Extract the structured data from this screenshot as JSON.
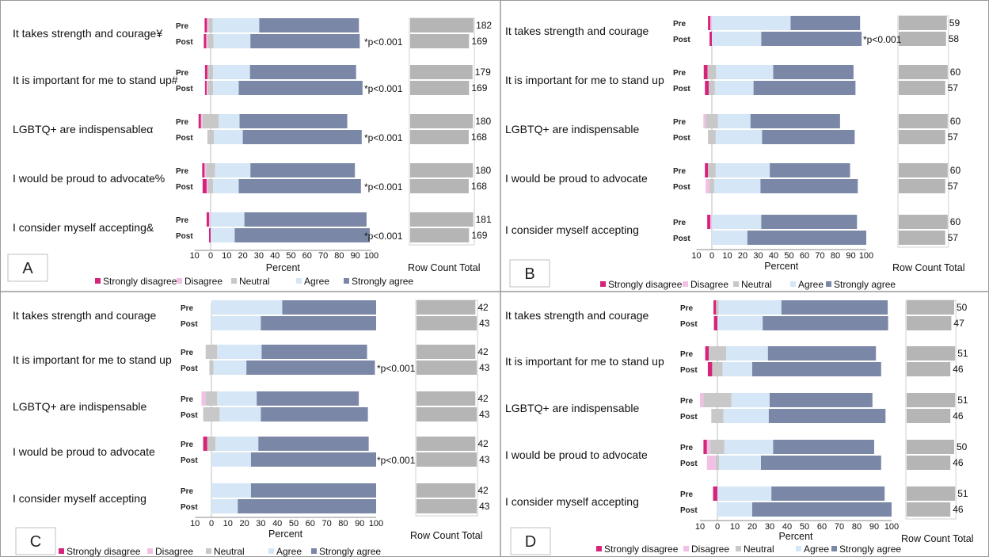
{
  "legend": [
    "Strongly disagree",
    "Disagree",
    "Neutral",
    "Agree",
    "Strongly agree"
  ],
  "colors": {
    "strongly_disagree": "#d6247a",
    "disagree": "#f2c0e4",
    "neutral": "#c8c8c8",
    "agree": "#d5e6f6",
    "strongly_agree": "#7b87a6",
    "count_bar": "#b5b5b5",
    "divider": "#9a9a9a"
  },
  "chart_data": [
    {
      "type": "bar",
      "panel": "A",
      "xlabel": "Percent",
      "count_label": "Row Count Total",
      "x_ticks": [
        "10",
        "0",
        "10",
        "20",
        "30",
        "40",
        "50",
        "60",
        "70",
        "80",
        "90",
        "100"
      ],
      "xlim": [
        -10,
        100
      ],
      "questions": [
        {
          "label": "It takes strength and courage¥",
          "pre": {
            "sd": 1.5,
            "d": 1.0,
            "n": 2.5,
            "a": 29,
            "sa": 62,
            "count": "182"
          },
          "post": {
            "sd": 1.5,
            "d": 1.0,
            "n": 3.5,
            "a": 23,
            "sa": 68,
            "count": "169"
          },
          "sig": "*p<0.001"
        },
        {
          "label": "It is important for me to stand up#",
          "pre": {
            "sd": 1.5,
            "d": 0.5,
            "n": 3,
            "a": 23,
            "sa": 66,
            "count": "179"
          },
          "post": {
            "sd": 1.0,
            "d": 1.0,
            "n": 3,
            "a": 16,
            "sa": 77,
            "count": "169"
          },
          "sig": "*p<0.001"
        },
        {
          "label": "LGBTQ+ are indispensableα",
          "pre": {
            "sd": 1.5,
            "d": 1.0,
            "n": 10,
            "a": 13,
            "sa": 67,
            "count": "180"
          },
          "post": {
            "sd": 0,
            "d": 0,
            "n": 4,
            "a": 18,
            "sa": 74,
            "count": "168"
          },
          "sig": "*p<0.001"
        },
        {
          "label": "I would be proud to advocate%",
          "pre": {
            "sd": 1.5,
            "d": 1.0,
            "n": 5.5,
            "a": 22,
            "sa": 65,
            "count": "180"
          },
          "post": {
            "sd": 2.5,
            "d": 1.0,
            "n": 3,
            "a": 16,
            "sa": 76,
            "count": "168"
          },
          "sig": "*p<0.001"
        },
        {
          "label": "I consider myself  accepting&",
          "pre": {
            "sd": 1.5,
            "d": 1.0,
            "n": 0,
            "a": 21,
            "sa": 76,
            "count": "181"
          },
          "post": {
            "sd": 1.0,
            "d": 0,
            "n": 0,
            "a": 15,
            "sa": 84,
            "count": "169"
          },
          "sig": "*p<0.001"
        }
      ]
    },
    {
      "type": "bar",
      "panel": "B",
      "xlabel": "Percent",
      "count_label": "Row Count Total",
      "x_ticks": [
        "10",
        "0",
        "10",
        "20",
        "30",
        "40",
        "50",
        "60",
        "70",
        "80",
        "90",
        "100"
      ],
      "xlim": [
        -10,
        100
      ],
      "questions": [
        {
          "label": "It takes strength and courage",
          "pre": {
            "sd": 1.5,
            "d": 1.0,
            "n": 0,
            "a": 51,
            "sa": 45,
            "count": "59"
          },
          "post": {
            "sd": 1.5,
            "d": 0,
            "n": 0,
            "a": 32,
            "sa": 65,
            "count": "58"
          },
          "sig": "*p<0.001"
        },
        {
          "label": "It is important for me to stand up",
          "pre": {
            "sd": 2.5,
            "d": 0,
            "n": 5.5,
            "a": 37,
            "sa": 52,
            "count": "60"
          },
          "post": {
            "sd": 2.5,
            "d": 0,
            "n": 4,
            "a": 25,
            "sa": 66,
            "count": "57"
          },
          "sig": ""
        },
        {
          "label": "LGBTQ+ are indispensable",
          "pre": {
            "sd": 0,
            "d": 1.5,
            "n": 8,
            "a": 21,
            "sa": 58,
            "count": "60"
          },
          "post": {
            "sd": 0,
            "d": 0,
            "n": 5,
            "a": 30,
            "sa": 60,
            "count": "57"
          },
          "sig": ""
        },
        {
          "label": "I would be proud to advocate",
          "pre": {
            "sd": 2.0,
            "d": 0,
            "n": 5,
            "a": 35,
            "sa": 52,
            "count": "60"
          },
          "post": {
            "sd": 0,
            "d": 2.5,
            "n": 3,
            "a": 30,
            "sa": 63,
            "count": "57"
          },
          "sig": ""
        },
        {
          "label": "I consider myself accepting",
          "pre": {
            "sd": 2.0,
            "d": 1.0,
            "n": 0,
            "a": 32,
            "sa": 62,
            "count": "60"
          },
          "post": {
            "sd": 0,
            "d": 0,
            "n": 0,
            "a": 23,
            "sa": 77,
            "count": "57"
          },
          "sig": ""
        }
      ]
    },
    {
      "type": "bar",
      "panel": "C",
      "xlabel": "Percent",
      "count_label": "Row Count Total",
      "x_ticks": [
        "10",
        "0",
        "10",
        "20",
        "30",
        "40",
        "50",
        "60",
        "70",
        "80",
        "90",
        "100"
      ],
      "xlim": [
        -10,
        100
      ],
      "questions": [
        {
          "label": "It takes strength and courage",
          "pre": {
            "sd": 0,
            "d": 0,
            "n": 0,
            "a": 43,
            "sa": 57,
            "count": "42"
          },
          "post": {
            "sd": 0,
            "d": 0,
            "n": 0,
            "a": 30,
            "sa": 70,
            "count": "43"
          },
          "sig": ""
        },
        {
          "label": "It is important for me to stand up",
          "pre": {
            "sd": 0,
            "d": 0,
            "n": 7,
            "a": 27,
            "sa": 64,
            "count": "42"
          },
          "post": {
            "sd": 0,
            "d": 0,
            "n": 2.5,
            "a": 20,
            "sa": 78,
            "count": "43"
          },
          "sig": "*p<0.001"
        },
        {
          "label": "LGBTQ+ are indispensable",
          "pre": {
            "sd": 0,
            "d": 2.5,
            "n": 7,
            "a": 24,
            "sa": 62,
            "count": "42"
          },
          "post": {
            "sd": 0,
            "d": 0,
            "n": 10,
            "a": 25,
            "sa": 65,
            "count": "43"
          },
          "sig": ""
        },
        {
          "label": "I would be proud to advocate",
          "pre": {
            "sd": 2.5,
            "d": 0,
            "n": 5,
            "a": 26,
            "sa": 67,
            "count": "42"
          },
          "post": {
            "sd": 0,
            "d": 0,
            "n": 0,
            "a": 24,
            "sa": 76,
            "count": "43"
          },
          "sig": "*p<0.001"
        },
        {
          "label": "I consider myself accepting",
          "pre": {
            "sd": 0,
            "d": 0,
            "n": 0,
            "a": 24,
            "sa": 76,
            "count": "42"
          },
          "post": {
            "sd": 0,
            "d": 0,
            "n": 0,
            "a": 16,
            "sa": 84,
            "count": "43"
          },
          "sig": ""
        }
      ]
    },
    {
      "type": "bar",
      "panel": "D",
      "xlabel": "Percent",
      "count_label": "Row Count Total",
      "x_ticks": [
        "10",
        "0",
        "10",
        "20",
        "30",
        "40",
        "50",
        "60",
        "70",
        "80",
        "90",
        "100"
      ],
      "xlim": [
        -10,
        100
      ],
      "questions": [
        {
          "label": "It takes strength and courage",
          "pre": {
            "sd": 1.5,
            "d": 0,
            "n": 1.5,
            "a": 36,
            "sa": 61,
            "count": "50"
          },
          "post": {
            "sd": 2.0,
            "d": 0,
            "n": 0,
            "a": 26,
            "sa": 72,
            "count": "47"
          },
          "sig": ""
        },
        {
          "label": "It is important for me to stand up",
          "pre": {
            "sd": 2.0,
            "d": 0,
            "n": 10,
            "a": 24,
            "sa": 62,
            "count": "51"
          },
          "post": {
            "sd": 2.5,
            "d": 0,
            "n": 6,
            "a": 17,
            "sa": 74,
            "count": "46"
          },
          "sig": ""
        },
        {
          "label": "LGBTQ+ are indispensable",
          "pre": {
            "sd": 0,
            "d": 2.0,
            "n": 16,
            "a": 22,
            "sa": 59,
            "count": "51"
          },
          "post": {
            "sd": 0,
            "d": 0,
            "n": 7,
            "a": 26,
            "sa": 67,
            "count": "46"
          },
          "sig": ""
        },
        {
          "label": "I would be proud to advocate",
          "pre": {
            "sd": 2.0,
            "d": 2.0,
            "n": 8,
            "a": 28,
            "sa": 58,
            "count": "50"
          },
          "post": {
            "sd": 0,
            "d": 5,
            "n": 2,
            "a": 24,
            "sa": 69,
            "count": "46"
          },
          "sig": ""
        },
        {
          "label": "I consider myself accepting",
          "pre": {
            "sd": 2.5,
            "d": 0,
            "n": 0,
            "a": 31,
            "sa": 65,
            "count": "51"
          },
          "post": {
            "sd": 0,
            "d": 0,
            "n": 0,
            "a": 20,
            "sa": 80,
            "count": "46"
          },
          "sig": ""
        }
      ]
    }
  ],
  "pre_label": "Pre",
  "post_label": "Post"
}
